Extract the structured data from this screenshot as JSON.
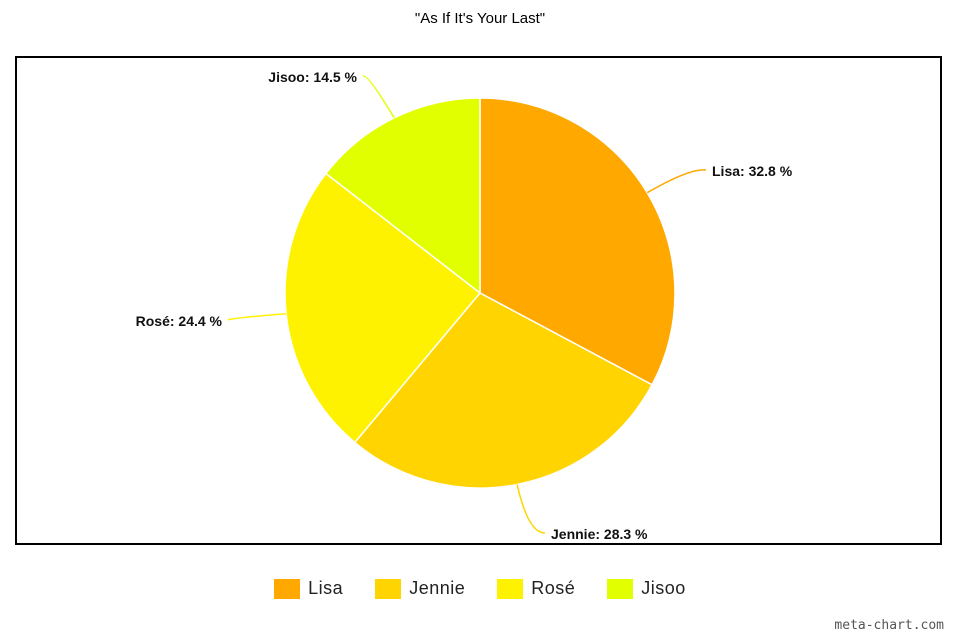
{
  "chart_data": {
    "type": "pie",
    "title": "\"As If It's Your Last\"",
    "slices": [
      {
        "name": "Lisa",
        "value": 32.8,
        "label": "Lisa: 32.8 %",
        "color": "#FFA800"
      },
      {
        "name": "Jennie",
        "value": 28.3,
        "label": "Jennie: 28.3 %",
        "color": "#FFD400"
      },
      {
        "name": "Rosé",
        "value": 24.4,
        "label": "Rosé: 24.4 %",
        "color": "#FFF200"
      },
      {
        "name": "Jisoo",
        "value": 14.5,
        "label": "Jisoo: 14.5 %",
        "color": "#E2FF00"
      }
    ],
    "legend_position": "bottom",
    "start_angle": "12 o'clock, clockwise"
  },
  "watermark": "meta-chart.com"
}
